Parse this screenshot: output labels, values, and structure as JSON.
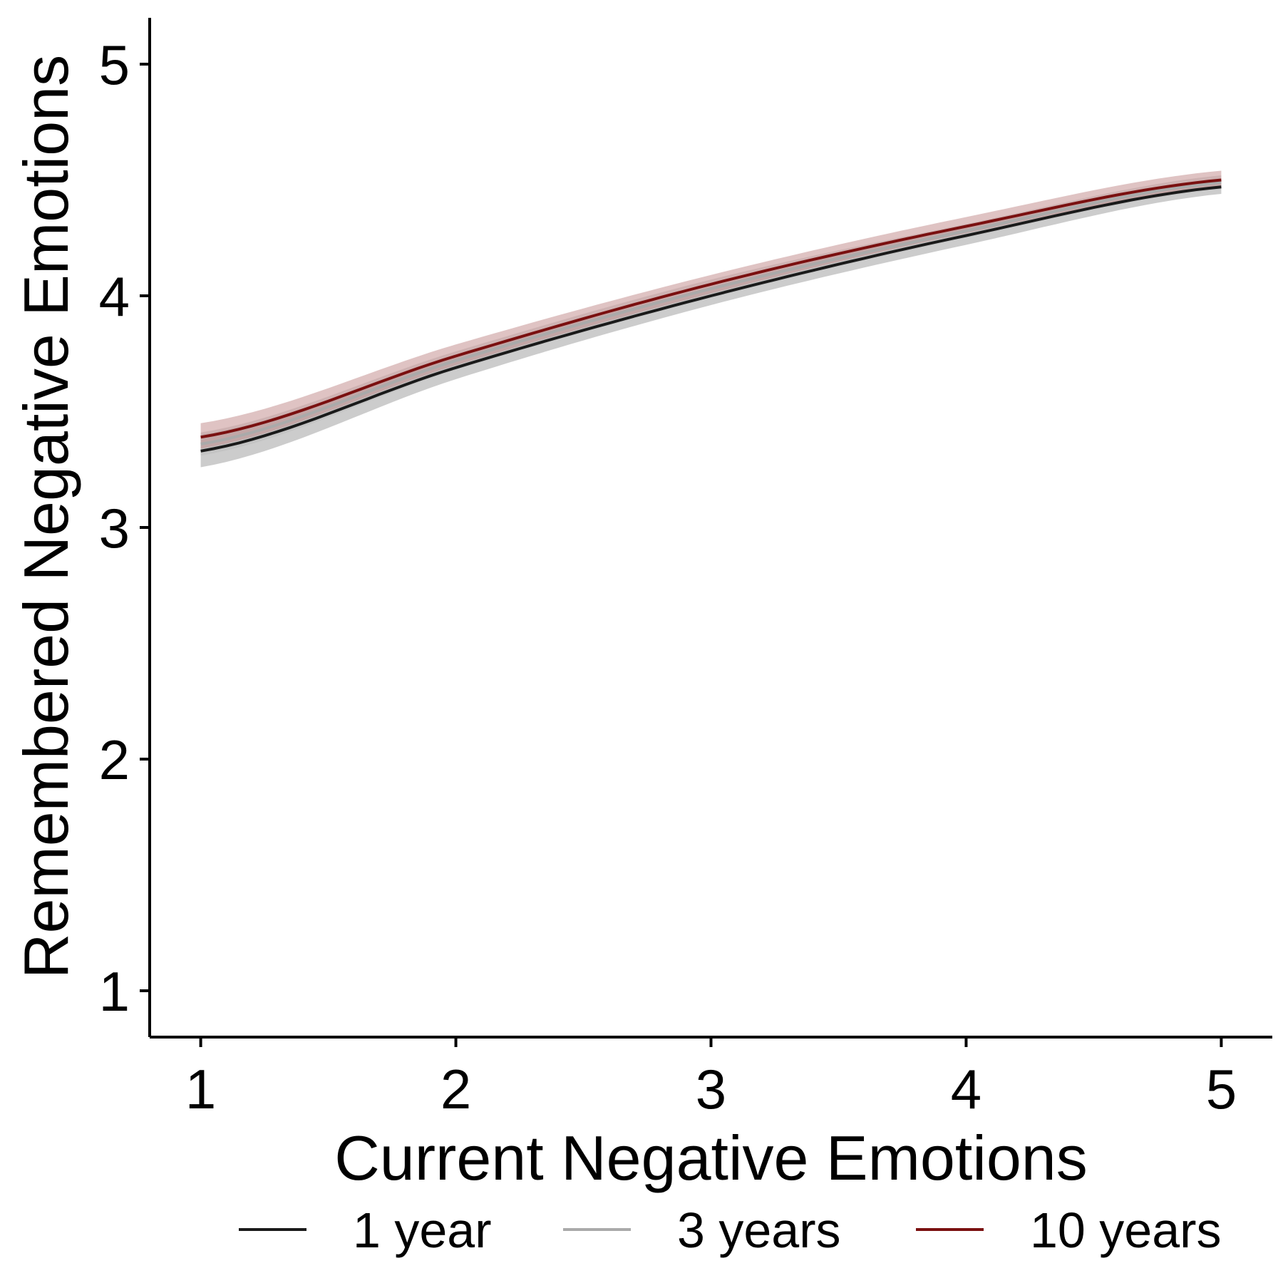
{
  "chart_data": {
    "type": "line",
    "title": "",
    "xlabel": "Current Negative Emotions",
    "ylabel": "Remembered Negative Emotions",
    "xlim": [
      0.8,
      5.2
    ],
    "ylim": [
      0.8,
      5.2
    ],
    "xticks": [
      1,
      2,
      3,
      4,
      5
    ],
    "yticks": [
      1,
      2,
      3,
      4,
      5
    ],
    "grid": false,
    "legend_position": "bottom",
    "x": [
      1,
      2,
      3,
      4,
      5
    ],
    "series": [
      {
        "name": "1 year",
        "color": "#1a1a1a",
        "band_color": "#999999",
        "values": [
          3.33,
          3.69,
          4.0,
          4.26,
          4.47
        ],
        "lower": [
          3.26,
          3.64,
          3.96,
          4.22,
          4.44
        ],
        "upper": [
          3.4,
          3.74,
          4.04,
          4.3,
          4.5
        ]
      },
      {
        "name": "3 years",
        "color": "#aaaaaa",
        "band_color": "#bbbbbb",
        "values": [
          3.36,
          3.72,
          4.03,
          4.28,
          4.49
        ],
        "lower": [
          3.31,
          3.68,
          3.99,
          4.25,
          4.46
        ],
        "upper": [
          3.41,
          3.76,
          4.07,
          4.31,
          4.52
        ]
      },
      {
        "name": "10 years",
        "color": "#7a1010",
        "band_color": "#c08888",
        "values": [
          3.39,
          3.74,
          4.05,
          4.3,
          4.5
        ],
        "lower": [
          3.34,
          3.7,
          4.01,
          4.27,
          4.47
        ],
        "upper": [
          3.45,
          3.79,
          4.09,
          4.34,
          4.54
        ]
      }
    ]
  }
}
